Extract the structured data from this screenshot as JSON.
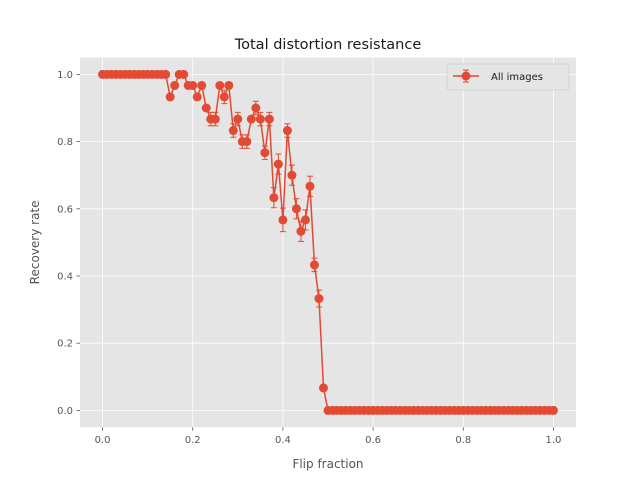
{
  "chart_data": {
    "type": "line",
    "title": "Total distortion resistance",
    "xlabel": "Flip fraction",
    "ylabel": "Recovery rate",
    "xlim": [
      -0.05,
      1.05
    ],
    "ylim": [
      -0.05,
      1.05
    ],
    "xticks": [
      0.0,
      0.2,
      0.4,
      0.6,
      0.8,
      1.0
    ],
    "xtick_labels": [
      "0.0",
      "0.2",
      "0.4",
      "0.6",
      "0.8",
      "1.0"
    ],
    "yticks": [
      0.0,
      0.2,
      0.4,
      0.6,
      0.8,
      1.0
    ],
    "ytick_labels": [
      "0.0",
      "0.2",
      "0.4",
      "0.6",
      "0.8",
      "1.0"
    ],
    "grid": true,
    "legend_position": "top-right",
    "colors": {
      "series": "#E24A33",
      "plot_background": "#E5E5E5",
      "grid": "#ffffff"
    },
    "series": [
      {
        "name": "All images",
        "marker": "circle",
        "error_bars": true,
        "x": [
          0.0,
          0.01,
          0.02,
          0.03,
          0.04,
          0.05,
          0.06,
          0.07,
          0.08,
          0.09,
          0.1,
          0.11,
          0.12,
          0.13,
          0.14,
          0.15,
          0.16,
          0.17,
          0.18,
          0.19,
          0.2,
          0.21,
          0.22,
          0.23,
          0.24,
          0.25,
          0.26,
          0.27,
          0.28,
          0.29,
          0.3,
          0.31,
          0.32,
          0.33,
          0.34,
          0.35,
          0.36,
          0.37,
          0.38,
          0.39,
          0.4,
          0.41,
          0.42,
          0.43,
          0.44,
          0.45,
          0.46,
          0.47,
          0.48,
          0.49,
          0.5,
          0.51,
          0.52,
          0.53,
          0.54,
          0.55,
          0.56,
          0.57,
          0.58,
          0.59,
          0.6,
          0.61,
          0.62,
          0.63,
          0.64,
          0.65,
          0.66,
          0.67,
          0.68,
          0.69,
          0.7,
          0.71,
          0.72,
          0.73,
          0.74,
          0.75,
          0.76,
          0.77,
          0.78,
          0.79,
          0.8,
          0.81,
          0.82,
          0.83,
          0.84,
          0.85,
          0.86,
          0.87,
          0.88,
          0.89,
          0.9,
          0.91,
          0.92,
          0.93,
          0.94,
          0.95,
          0.96,
          0.97,
          0.98,
          0.99,
          1.0
        ],
        "y": [
          1.0,
          1.0,
          1.0,
          1.0,
          1.0,
          1.0,
          1.0,
          1.0,
          1.0,
          1.0,
          1.0,
          1.0,
          1.0,
          1.0,
          1.0,
          0.933,
          0.967,
          1.0,
          1.0,
          0.967,
          0.967,
          0.933,
          0.967,
          0.9,
          0.867,
          0.867,
          0.967,
          0.933,
          0.967,
          0.833,
          0.867,
          0.8,
          0.8,
          0.867,
          0.9,
          0.867,
          0.767,
          0.867,
          0.633,
          0.733,
          0.567,
          0.833,
          0.7,
          0.6,
          0.533,
          0.567,
          0.667,
          0.433,
          0.333,
          0.067,
          0.0,
          0.0,
          0.0,
          0.0,
          0.0,
          0.0,
          0.0,
          0.0,
          0.0,
          0.0,
          0.0,
          0.0,
          0.0,
          0.0,
          0.0,
          0.0,
          0.0,
          0.0,
          0.0,
          0.0,
          0.0,
          0.0,
          0.0,
          0.0,
          0.0,
          0.0,
          0.0,
          0.0,
          0.0,
          0.0,
          0.0,
          0.0,
          0.0,
          0.0,
          0.0,
          0.0,
          0.0,
          0.0,
          0.0,
          0.0,
          0.0,
          0.0,
          0.0,
          0.0,
          0.0,
          0.0,
          0.0,
          0.0,
          0.0,
          0.0,
          0.0
        ],
        "yerr": [
          0,
          0,
          0,
          0,
          0,
          0,
          0,
          0,
          0,
          0,
          0,
          0,
          0,
          0,
          0,
          0,
          0,
          0,
          0,
          0,
          0,
          0,
          0,
          0,
          0.02,
          0.02,
          0,
          0.02,
          0,
          0.02,
          0.02,
          0.02,
          0.02,
          0,
          0.02,
          0.02,
          0.02,
          0.02,
          0.03,
          0.03,
          0.035,
          0.02,
          0.03,
          0.03,
          0.03,
          0.03,
          0.03,
          0.02,
          0.025,
          0,
          0,
          0,
          0,
          0,
          0,
          0,
          0,
          0,
          0,
          0,
          0,
          0,
          0,
          0,
          0,
          0,
          0,
          0,
          0,
          0,
          0,
          0,
          0,
          0,
          0,
          0,
          0,
          0,
          0,
          0,
          0,
          0,
          0,
          0,
          0,
          0,
          0,
          0,
          0,
          0,
          0,
          0,
          0,
          0,
          0,
          0,
          0,
          0,
          0,
          0,
          0
        ]
      }
    ]
  }
}
